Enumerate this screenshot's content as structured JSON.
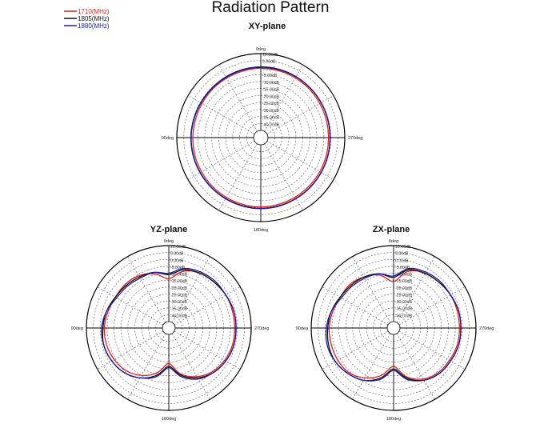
{
  "title": "Radiation Pattern",
  "legend": [
    {
      "label": "1710(MHz)",
      "color": "#e02020"
    },
    {
      "label": "1805(MHz)",
      "color": "#111111"
    },
    {
      "label": "1880(MHz)",
      "color": "#1a1aa8"
    }
  ],
  "rings": [
    "10.00dB",
    "5.00dB",
    "0.00dB",
    "-5.00dB",
    "-10.00dB",
    "-15.00dB",
    "-20.00dB",
    "-25.00dB",
    "-30.00dB",
    "-35.00dB",
    "-40.00dB"
  ],
  "angle_labels": {
    "top": "0deg",
    "left": "90deg",
    "right": "270deg",
    "bottom": "180deg"
  },
  "chart_data": [
    {
      "type": "line",
      "subtype": "polar",
      "title": "XY-plane",
      "r_unit": "dB",
      "rlim": [
        -45,
        10
      ],
      "angle_deg": [
        0,
        15,
        30,
        45,
        60,
        75,
        90,
        105,
        120,
        135,
        150,
        165,
        180,
        195,
        210,
        225,
        240,
        255,
        270,
        285,
        300,
        315,
        330,
        345
      ],
      "series": [
        {
          "name": "1710(MHz)",
          "color": "#e02020",
          "values": [
            -0.5,
            -0.8,
            -1.0,
            -1.2,
            -1.5,
            -1.6,
            -1.5,
            -1.3,
            -1.2,
            -1.0,
            -0.8,
            -0.6,
            -0.5,
            -0.7,
            -1.0,
            -1.2,
            -1.4,
            -1.6,
            -1.7,
            -1.6,
            -1.4,
            -1.0,
            -0.8,
            -0.6
          ]
        },
        {
          "name": "1805(MHz)",
          "color": "#111111",
          "values": [
            0.2,
            0.0,
            -0.3,
            -0.5,
            -0.6,
            -0.5,
            -0.3,
            -0.2,
            -0.1,
            0.0,
            0.2,
            0.4,
            0.5,
            0.4,
            0.1,
            -0.1,
            -0.3,
            -0.5,
            -0.6,
            -0.5,
            -0.3,
            -0.1,
            0.1,
            0.2
          ]
        },
        {
          "name": "1880(MHz)",
          "color": "#1a1aa8",
          "values": [
            0.5,
            0.3,
            0.0,
            -0.3,
            -0.4,
            -0.3,
            -0.1,
            0.0,
            0.1,
            0.2,
            0.4,
            0.6,
            0.7,
            0.6,
            0.3,
            0.1,
            -0.2,
            -0.4,
            -0.5,
            -0.4,
            -0.2,
            0.0,
            0.3,
            0.5
          ]
        }
      ]
    },
    {
      "type": "line",
      "subtype": "polar",
      "title": "YZ-plane",
      "r_unit": "dB",
      "rlim": [
        -45,
        10
      ],
      "angle_deg": [
        0,
        15,
        30,
        45,
        60,
        75,
        90,
        105,
        120,
        135,
        150,
        165,
        180,
        195,
        210,
        225,
        240,
        255,
        270,
        285,
        300,
        315,
        330,
        345
      ],
      "series": [
        {
          "name": "1710(MHz)",
          "color": "#e02020",
          "values": [
            -14,
            -9,
            -6,
            -5,
            -5,
            -4,
            -3,
            -3,
            -4,
            -6,
            -10,
            -16,
            -24,
            -15,
            -9,
            -5,
            -3,
            -2,
            -2,
            -2,
            -2,
            -3,
            -4,
            -7
          ]
        },
        {
          "name": "1805(MHz)",
          "color": "#111111",
          "values": [
            -11,
            -8,
            -7,
            -6,
            -5,
            -3,
            -2,
            -1,
            -2,
            -4,
            -8,
            -14,
            -22,
            -14,
            -8,
            -4,
            -2,
            -1,
            -1,
            -1,
            -2,
            -3,
            -4,
            -6
          ]
        },
        {
          "name": "1880(MHz)",
          "color": "#1a1aa8",
          "values": [
            -10,
            -8,
            -8,
            -7,
            -6,
            -3,
            -1,
            -1,
            -2,
            -4,
            -8,
            -13,
            -21,
            -13,
            -7,
            -4,
            -2,
            -1,
            -1,
            -1,
            -2,
            -2,
            -3,
            -5
          ]
        }
      ]
    },
    {
      "type": "line",
      "subtype": "polar",
      "title": "ZX-plane",
      "r_unit": "dB",
      "rlim": [
        -45,
        10
      ],
      "angle_deg": [
        0,
        15,
        30,
        45,
        60,
        75,
        90,
        105,
        120,
        135,
        150,
        165,
        180,
        195,
        210,
        225,
        240,
        255,
        270,
        285,
        300,
        315,
        330,
        345
      ],
      "series": [
        {
          "name": "1710(MHz)",
          "color": "#e02020",
          "values": [
            -16,
            -10,
            -7,
            -5,
            -5,
            -4,
            -3,
            -3,
            -3,
            -4,
            -8,
            -14,
            -22,
            -13,
            -7,
            -4,
            -3,
            -2,
            -2,
            -2,
            -2,
            -3,
            -4,
            -7
          ]
        },
        {
          "name": "1805(MHz)",
          "color": "#111111",
          "values": [
            -13,
            -9,
            -7,
            -6,
            -5,
            -3,
            -2,
            -1,
            -1,
            -3,
            -6,
            -12,
            -20,
            -12,
            -6,
            -3,
            -2,
            -1,
            -1,
            -1,
            -2,
            -3,
            -4,
            -6
          ]
        },
        {
          "name": "1880(MHz)",
          "color": "#1a1aa8",
          "values": [
            -12,
            -9,
            -8,
            -7,
            -6,
            -3,
            -1,
            0,
            -1,
            -3,
            -6,
            -11,
            -19,
            -11,
            -6,
            -3,
            -2,
            -1,
            -1,
            -1,
            -2,
            -2,
            -3,
            -5
          ]
        }
      ]
    }
  ]
}
